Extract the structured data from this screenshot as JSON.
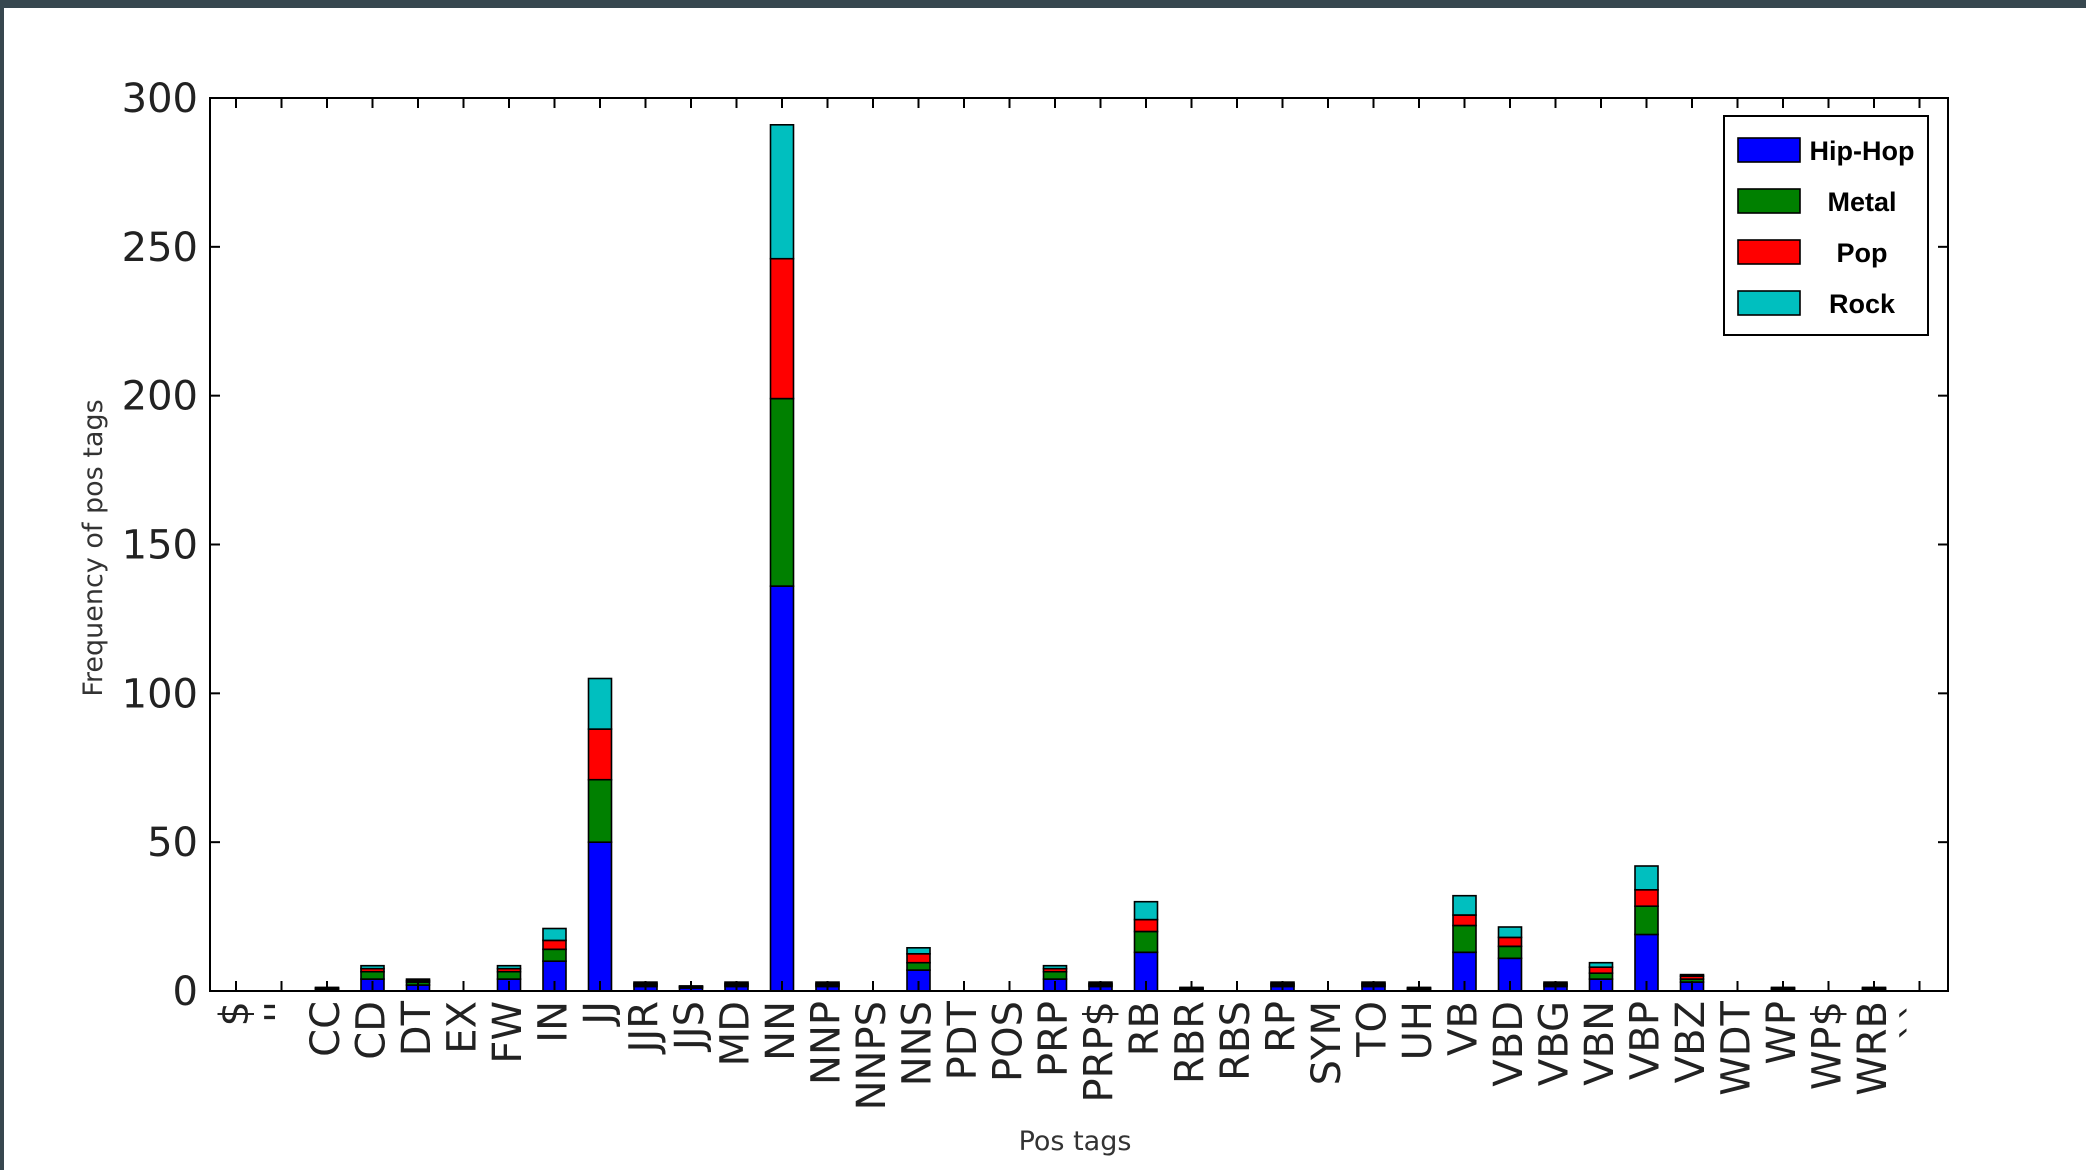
{
  "chart_data": {
    "type": "bar",
    "stacked": true,
    "title": "",
    "xlabel": "Pos tags",
    "ylabel": "Frequency of pos tags",
    "ylim": [
      0,
      300
    ],
    "yticks": [
      0,
      50,
      100,
      150,
      200,
      250,
      300
    ],
    "grid": false,
    "legend_position": "top-right",
    "categories": [
      "$",
      "''",
      "CC",
      "CD",
      "DT",
      "EX",
      "FW",
      "IN",
      "JJ",
      "JJR",
      "JJS",
      "MD",
      "NN",
      "NNP",
      "NNPS",
      "NNS",
      "PDT",
      "POS",
      "PRP",
      "PRP$",
      "RB",
      "RBR",
      "RBS",
      "RP",
      "SYM",
      "TO",
      "UH",
      "VB",
      "VBD",
      "VBG",
      "VBN",
      "VBP",
      "VBZ",
      "WDT",
      "WP",
      "WP$",
      "WRB",
      "``"
    ],
    "series": [
      {
        "name": "Hip-Hop",
        "color": "#0000ff",
        "values": [
          0,
          0,
          0.5,
          4,
          2,
          0,
          4,
          10,
          50,
          1.5,
          1,
          1.5,
          136,
          1.5,
          0,
          7,
          0,
          0,
          4,
          1.5,
          13,
          0.5,
          0,
          1.5,
          0,
          1.5,
          0.5,
          13,
          11,
          1.5,
          4,
          19,
          3,
          0,
          0.5,
          0,
          0.5,
          0
        ]
      },
      {
        "name": "Metal",
        "color": "#008000",
        "values": [
          0,
          0,
          0.3,
          2.5,
          1,
          0,
          2.5,
          4,
          21,
          0.5,
          0.3,
          0.5,
          63,
          0.5,
          0,
          2.5,
          0,
          0,
          2.5,
          0.5,
          7,
          0.3,
          0,
          0.5,
          0,
          0.5,
          0.3,
          9,
          4,
          0.5,
          2,
          9.5,
          1,
          0,
          0.3,
          0,
          0.3,
          0
        ]
      },
      {
        "name": "Pop",
        "color": "#ff0000",
        "values": [
          0,
          0,
          0.2,
          1,
          0.5,
          0,
          1,
          3,
          17,
          0.5,
          0.2,
          0.5,
          47,
          0.5,
          0,
          3,
          0,
          0,
          1,
          0.5,
          4,
          0.2,
          0,
          0.5,
          0,
          0.5,
          0.2,
          3.5,
          3,
          0.5,
          2,
          5.5,
          1,
          0,
          0.2,
          0,
          0.2,
          0
        ]
      },
      {
        "name": "Rock",
        "color": "#00bfbf",
        "values": [
          0,
          0,
          0.2,
          1,
          0.5,
          0,
          1,
          4,
          17,
          0.5,
          0.2,
          0.5,
          45,
          0.5,
          0,
          2,
          0,
          0,
          1,
          0.5,
          6,
          0.2,
          0,
          0.5,
          0,
          0.5,
          0.2,
          6.5,
          3.5,
          0.5,
          1.5,
          8,
          0.5,
          0,
          0.2,
          0,
          0.2,
          0
        ]
      }
    ]
  }
}
